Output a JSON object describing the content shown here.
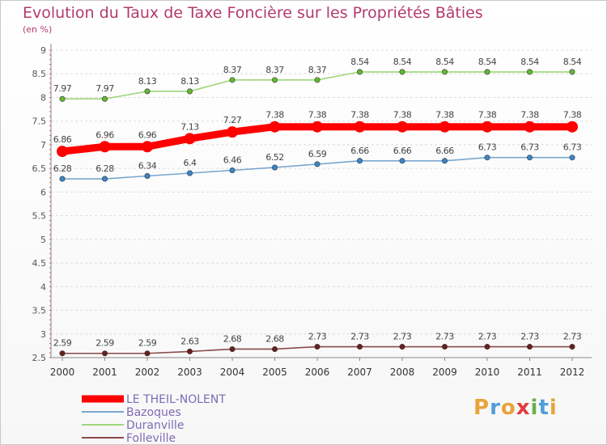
{
  "title": "Evolution du Taux de Taxe Foncière sur les Propriétés Bâties",
  "subtitle": "(en %)",
  "logo": {
    "text": "Proxiti",
    "colors": [
      "#e8a33a",
      "#4f9fd8",
      "#e8a33a",
      "#e23b3b",
      "#6ab04c",
      "#4f9fd8",
      "#e8a33a"
    ]
  },
  "chart_data": {
    "type": "line",
    "x": [
      "2000",
      "2001",
      "2002",
      "2003",
      "2004",
      "2005",
      "2006",
      "2007",
      "2008",
      "2009",
      "2010",
      "2011",
      "2012"
    ],
    "ylim": [
      2.5,
      9
    ],
    "yticks": [
      "2.5",
      "3",
      "3.5",
      "4",
      "4.5",
      "5",
      "5.5",
      "6",
      "6.5",
      "7",
      "7.5",
      "8",
      "8.5",
      "9"
    ],
    "grid": "horizontal dashed",
    "legend_position": "bottom-left",
    "series": [
      {
        "name": "LE THEIL-NOLENT",
        "color": "#ff0000",
        "values": [
          6.86,
          6.96,
          6.96,
          7.13,
          7.27,
          7.38,
          7.38,
          7.38,
          7.38,
          7.38,
          7.38,
          7.38,
          7.38
        ],
        "labels": [
          "6.86",
          "6.96",
          "6.96",
          "7.13",
          "7.27",
          "7.38",
          "7.38",
          "7.38",
          "7.38",
          "7.38",
          "7.38",
          "7.38",
          "7.38"
        ]
      },
      {
        "name": "Bazoques",
        "color": "#7aa7cf",
        "point_color": "#3a86c8",
        "values": [
          6.28,
          6.28,
          6.34,
          6.4,
          6.46,
          6.52,
          6.59,
          6.66,
          6.66,
          6.66,
          6.73,
          6.73,
          6.73
        ],
        "labels": [
          "6.28",
          "6.28",
          "6.34",
          "6.4",
          "6.46",
          "6.52",
          "6.59",
          "6.66",
          "6.66",
          "6.66",
          "6.73",
          "6.73",
          "6.73"
        ]
      },
      {
        "name": "Duranville",
        "color": "#9fd67a",
        "point_color": "#62b832",
        "values": [
          7.97,
          7.97,
          8.13,
          8.13,
          8.37,
          8.37,
          8.37,
          8.54,
          8.54,
          8.54,
          8.54,
          8.54,
          8.54
        ],
        "labels": [
          "7.97",
          "7.97",
          "8.13",
          "8.13",
          "8.37",
          "8.37",
          "8.37",
          "8.54",
          "8.54",
          "8.54",
          "8.54",
          "8.54",
          "8.54"
        ]
      },
      {
        "name": "Folleville",
        "color": "#8a4a4a",
        "point_color": "#6a1f1f",
        "values": [
          2.59,
          2.59,
          2.59,
          2.63,
          2.68,
          2.68,
          2.73,
          2.73,
          2.73,
          2.73,
          2.73,
          2.73,
          2.73
        ],
        "labels": [
          "2.59",
          "2.59",
          "2.59",
          "2.63",
          "2.68",
          "2.68",
          "2.73",
          "2.73",
          "2.73",
          "2.73",
          "2.73",
          "2.73",
          "2.73"
        ]
      }
    ]
  }
}
